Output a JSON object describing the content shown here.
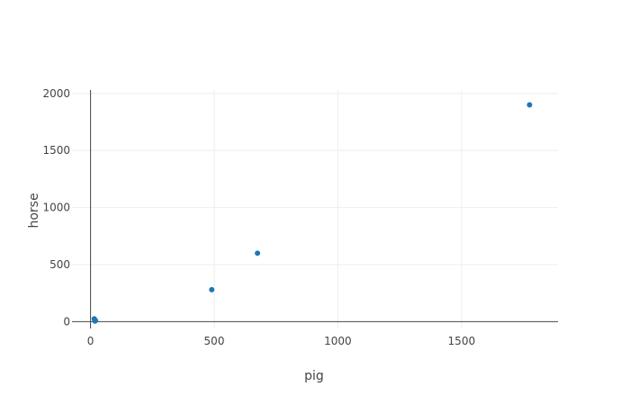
{
  "chart_data": {
    "type": "scatter",
    "xlabel": "pig",
    "ylabel": "horse",
    "xlim": [
      -75,
      1890
    ],
    "ylim": [
      -60,
      2030
    ],
    "x_ticks": [
      0,
      500,
      1000,
      1500
    ],
    "y_ticks": [
      0,
      500,
      1000,
      1500,
      2000
    ],
    "x_tick_labels": [
      "0",
      "500",
      "1000",
      "1500"
    ],
    "y_tick_labels": [
      "0",
      "500",
      "1000",
      "1500",
      "2000"
    ],
    "grid": true,
    "marker_color": "#1f77b4",
    "series": [
      {
        "x": [
          15,
          20,
          18,
          490,
          675,
          1775
        ],
        "y": [
          25,
          10,
          5,
          280,
          600,
          1900
        ]
      }
    ]
  }
}
